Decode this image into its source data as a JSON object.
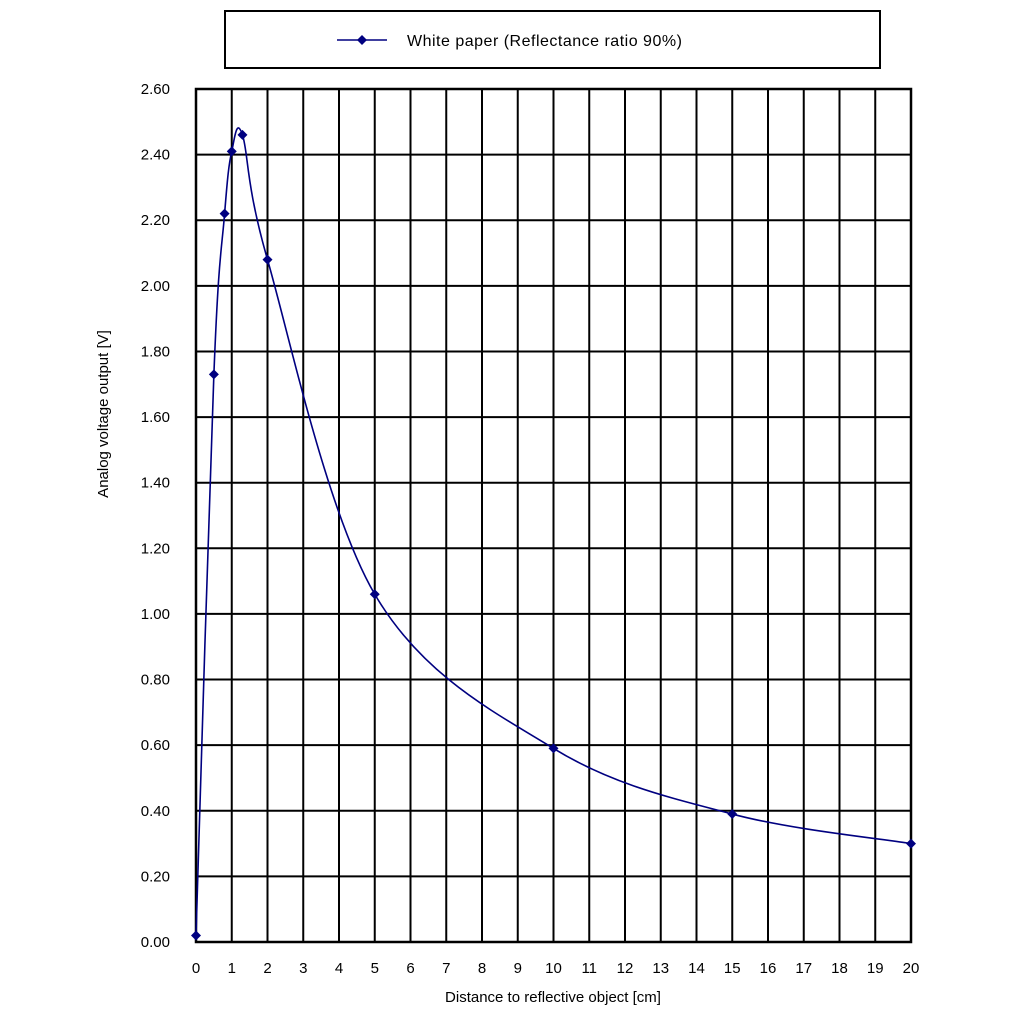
{
  "chart_data": {
    "type": "line",
    "xlabel": "Distance to reflective object [cm]",
    "ylabel": "Analog voltage output [V]",
    "xlim": [
      0,
      20
    ],
    "ylim": [
      0,
      2.6
    ],
    "x_ticks": [
      "0",
      "1",
      "2",
      "3",
      "4",
      "5",
      "6",
      "7",
      "8",
      "9",
      "10",
      "11",
      "12",
      "13",
      "14",
      "15",
      "16",
      "17",
      "18",
      "19",
      "20"
    ],
    "y_ticks": [
      "0.00",
      "0.20",
      "0.40",
      "0.60",
      "0.80",
      "1.00",
      "1.20",
      "1.40",
      "1.60",
      "1.80",
      "2.00",
      "2.20",
      "2.40",
      "2.60"
    ],
    "grid": true,
    "legend_position": "top",
    "series": [
      {
        "name": "White paper (Reflectance ratio 90%)",
        "color": "#000080",
        "marker": "diamond",
        "x": [
          0,
          0.5,
          0.8,
          1.0,
          1.3,
          2,
          5,
          10,
          15,
          20
        ],
        "y": [
          0.02,
          1.73,
          2.22,
          2.41,
          2.46,
          2.08,
          1.06,
          0.59,
          0.39,
          0.3
        ]
      }
    ]
  }
}
